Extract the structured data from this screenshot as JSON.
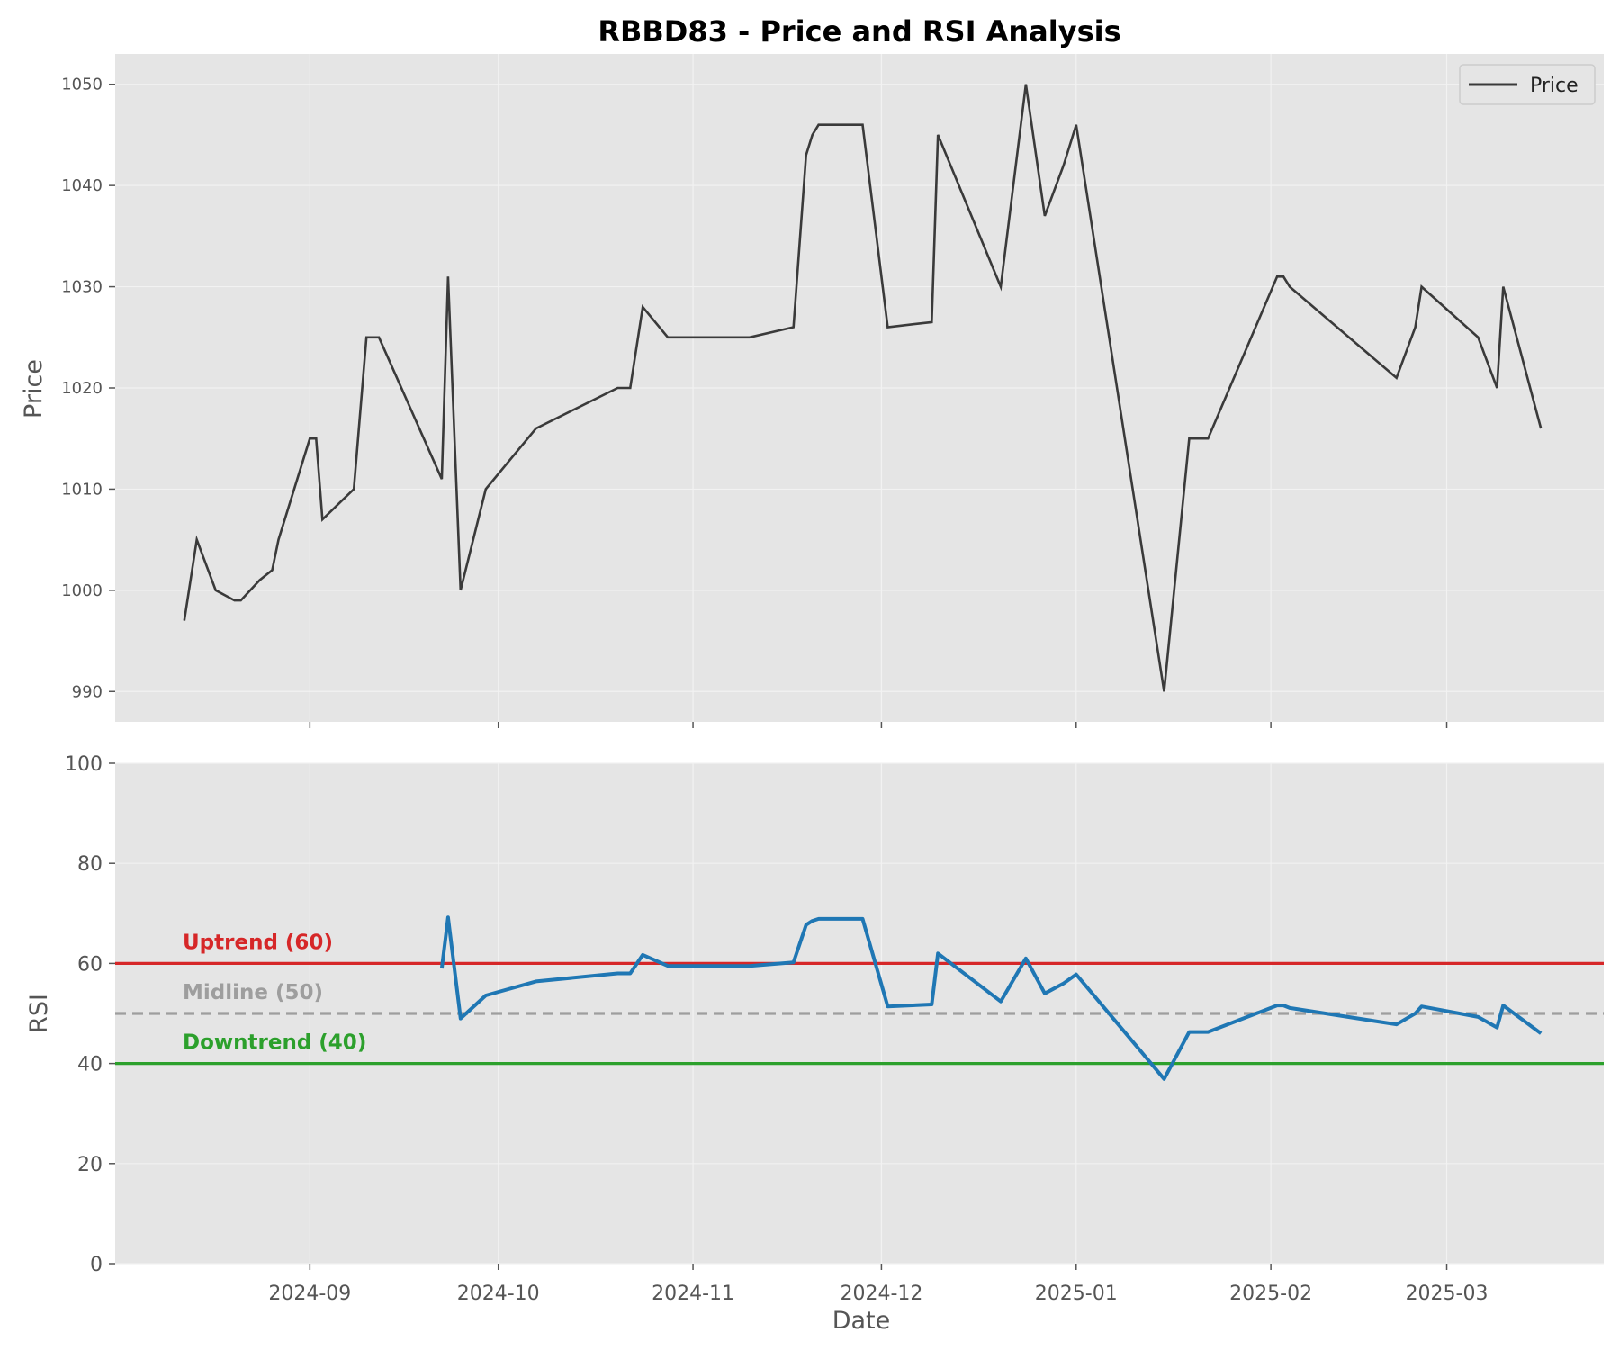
{
  "title": "RBBD83 - Price and RSI Analysis",
  "colors": {
    "panel_bg": "#e5e5e5",
    "grid": "#f2f2f2",
    "price_line": "#3a3a3a",
    "rsi_line": "#1f77b4",
    "uptrend": "#d62728",
    "midline": "#9e9e9e",
    "downtrend": "#2ca02c"
  },
  "chart_data": [
    {
      "type": "line",
      "panel": "price",
      "ylabel": "Price",
      "ylim": [
        987,
        1053
      ],
      "yticks": [
        990,
        1000,
        1010,
        1020,
        1030,
        1040,
        1050
      ],
      "legend": {
        "position": "top-right",
        "entries": [
          "Price"
        ]
      },
      "grid": true,
      "series": [
        {
          "name": "Price",
          "x": [
            "2024-08-12",
            "2024-08-14",
            "2024-08-17",
            "2024-08-20",
            "2024-08-21",
            "2024-08-24",
            "2024-08-26",
            "2024-08-27",
            "2024-09-01",
            "2024-09-02",
            "2024-09-03",
            "2024-09-08",
            "2024-09-10",
            "2024-09-12",
            "2024-09-22",
            "2024-09-23",
            "2024-09-25",
            "2024-09-29",
            "2024-10-07",
            "2024-10-20",
            "2024-10-22",
            "2024-10-24",
            "2024-10-28",
            "2024-11-10",
            "2024-11-17",
            "2024-11-19",
            "2024-11-20",
            "2024-11-21",
            "2024-11-28",
            "2024-12-02",
            "2024-12-09",
            "2024-12-10",
            "2024-12-20",
            "2024-12-24",
            "2024-12-27",
            "2024-12-30",
            "2025-01-01",
            "2025-01-15",
            "2025-01-19",
            "2025-01-22",
            "2025-02-02",
            "2025-02-03",
            "2025-02-04",
            "2025-02-21",
            "2025-02-24",
            "2025-02-25",
            "2025-03-06",
            "2025-03-09",
            "2025-03-10",
            "2025-03-16"
          ],
          "values": [
            997,
            1005,
            1000,
            999,
            999,
            1001,
            1002,
            1005,
            1015,
            1015,
            1007,
            1010,
            1025,
            1025,
            1011,
            1031,
            1000,
            1010,
            1016,
            1020,
            1020,
            1028,
            1025,
            1025,
            1026,
            1043,
            1045,
            1046,
            1046,
            1026,
            1026.5,
            1045,
            1030,
            1050,
            1037,
            1042,
            1046,
            990,
            1015,
            1015,
            1031,
            1031,
            1030,
            1021,
            1026,
            1030,
            1025,
            1020,
            1030,
            1016
          ]
        }
      ]
    },
    {
      "type": "line",
      "panel": "rsi",
      "ylabel": "RSI",
      "xlabel": "Date",
      "ylim": [
        0,
        100
      ],
      "yticks": [
        0,
        20,
        40,
        60,
        80,
        100
      ],
      "xticks": [
        "2024-09",
        "2024-10",
        "2024-11",
        "2024-12",
        "2025-01",
        "2025-02",
        "2025-03"
      ],
      "grid": true,
      "series": [
        {
          "name": "RSI",
          "x": [
            "2024-09-22",
            "2024-09-23",
            "2024-09-25",
            "2024-09-29",
            "2024-10-07",
            "2024-10-20",
            "2024-10-22",
            "2024-10-24",
            "2024-10-28",
            "2024-11-10",
            "2024-11-17",
            "2024-11-19",
            "2024-11-20",
            "2024-11-21",
            "2024-11-28",
            "2024-12-02",
            "2024-12-09",
            "2024-12-10",
            "2024-12-20",
            "2024-12-24",
            "2024-12-27",
            "2024-12-30",
            "2025-01-01",
            "2025-01-15",
            "2025-01-19",
            "2025-01-22",
            "2025-02-02",
            "2025-02-03",
            "2025-02-04",
            "2025-02-21",
            "2025-02-24",
            "2025-02-25",
            "2025-03-06",
            "2025-03-09",
            "2025-03-10",
            "2025-03-16"
          ],
          "values": [
            59,
            69.2,
            49,
            53.6,
            56.4,
            58,
            58,
            61.7,
            59.5,
            59.5,
            60.2,
            67.7,
            68.5,
            68.9,
            68.9,
            51.4,
            51.8,
            62,
            52.4,
            61,
            54,
            56,
            57.8,
            36.9,
            46.3,
            46.3,
            51.6,
            51.6,
            51.1,
            47.8,
            50,
            51.4,
            49.3,
            47.2,
            51.6,
            46
          ]
        }
      ],
      "reference_lines": [
        {
          "label": "Uptrend (60)",
          "value": 60,
          "style": "solid",
          "color": "#d62728"
        },
        {
          "label": "Midline (50)",
          "value": 50,
          "style": "dashed",
          "color": "#9e9e9e"
        },
        {
          "label": "Downtrend (40)",
          "value": 40,
          "style": "solid",
          "color": "#2ca02c"
        }
      ]
    }
  ]
}
